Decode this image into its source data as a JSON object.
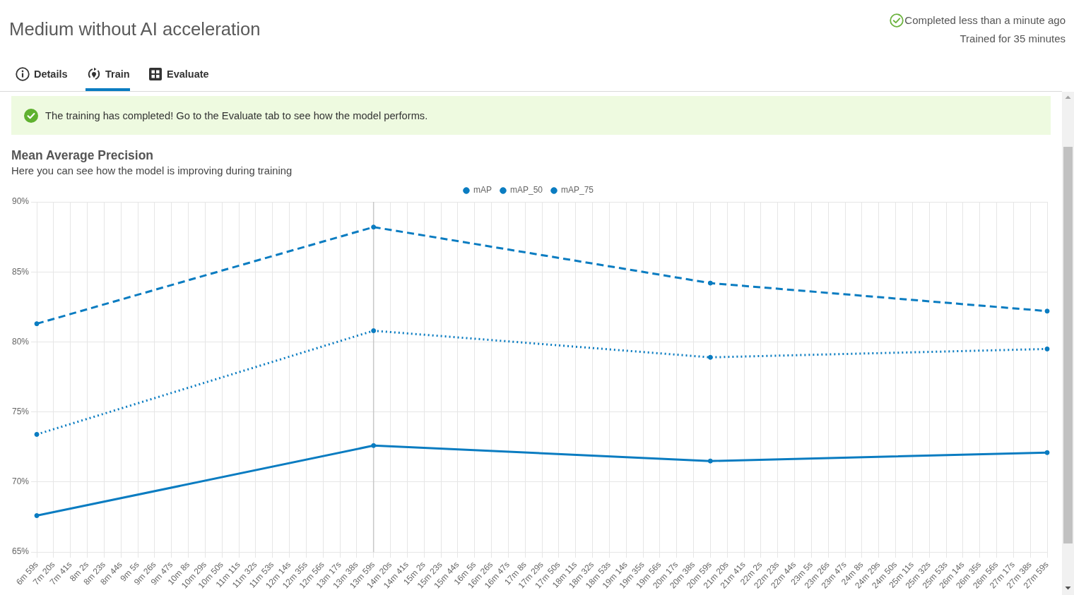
{
  "chart_data": {
    "type": "line",
    "title": "Mean Average Precision",
    "subtitle": "Here you can see how the model is improving during training",
    "annotations": [
      "Medium without AI acceleration",
      "Completed less than a minute ago",
      "Trained for 35 minutes",
      "Details",
      "Train",
      "Evaluate",
      "The training has completed! Go to the Evaluate tab to see how the model performs."
    ],
    "categories": [
      "6m 59s",
      "7m 20s",
      "7m 41s",
      "8m 2s",
      "8m 23s",
      "8m 44s",
      "9m 5s",
      "9m 26s",
      "9m 47s",
      "10m 8s",
      "10m 29s",
      "10m 50s",
      "11m 11s",
      "11m 32s",
      "11m 53s",
      "12m 14s",
      "12m 35s",
      "12m 56s",
      "13m 17s",
      "13m 38s",
      "13m 59s",
      "14m 20s",
      "14m 41s",
      "15m 2s",
      "15m 23s",
      "15m 44s",
      "16m 5s",
      "16m 26s",
      "16m 47s",
      "17m 8s",
      "17m 29s",
      "17m 50s",
      "18m 11s",
      "18m 32s",
      "18m 53s",
      "19m 14s",
      "19m 35s",
      "19m 56s",
      "20m 17s",
      "20m 38s",
      "20m 59s",
      "21m 20s",
      "21m 41s",
      "22m 2s",
      "22m 23s",
      "22m 44s",
      "23m 5s",
      "23m 26s",
      "23m 47s",
      "24m 8s",
      "24m 29s",
      "24m 50s",
      "25m 11s",
      "25m 32s",
      "25m 53s",
      "26m 14s",
      "26m 35s",
      "26m 56s",
      "27m 17s",
      "27m 38s",
      "27m 59s"
    ],
    "series": [
      {
        "name": "mAP",
        "color": "#0a7cc1",
        "x": [
          "6m 59s",
          "13m 59s",
          "20m 59s",
          "27m 59s"
        ],
        "values": [
          67.6,
          72.6,
          71.5,
          72.1
        ],
        "line_style": "solid"
      },
      {
        "name": "mAP_50",
        "color": "#0a7cc1",
        "x": [
          "6m 59s",
          "13m 59s",
          "20m 59s",
          "27m 59s"
        ],
        "values": [
          81.3,
          88.2,
          84.2,
          82.2
        ],
        "line_style": "dashed"
      },
      {
        "name": "mAP_75",
        "color": "#0a7cc1",
        "x": [
          "6m 59s",
          "13m 59s",
          "20m 59s",
          "27m 59s"
        ],
        "values": [
          73.4,
          80.8,
          78.9,
          79.5
        ],
        "line_style": "dotted"
      }
    ],
    "ylim": [
      65,
      90
    ],
    "yticks": [
      {
        "value": 65,
        "label": "65%"
      },
      {
        "value": 70,
        "label": "70%"
      },
      {
        "value": 75,
        "label": "75%"
      },
      {
        "value": 80,
        "label": "80%"
      },
      {
        "value": 85,
        "label": "85%"
      },
      {
        "value": 90,
        "label": "90%"
      }
    ],
    "grid": true,
    "legend": "top",
    "marker": "circle",
    "ref_lines": [
      {
        "axis": "x",
        "value": "13m 59s",
        "color": "#c8c8c8"
      }
    ]
  }
}
